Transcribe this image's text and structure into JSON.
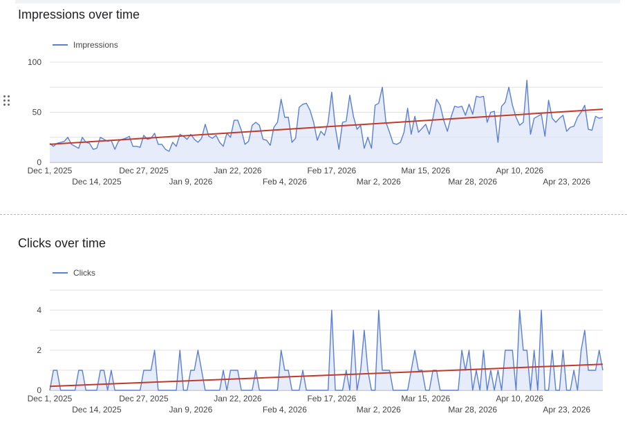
{
  "charts": [
    {
      "title": "Impressions over time",
      "legend": "Impressions"
    },
    {
      "title": "Clicks over time",
      "legend": "Clicks"
    }
  ],
  "colors": {
    "series": "#5a7ed6",
    "area": "#dbe4f8",
    "trend": "#c0392b",
    "grid": "#e0e0e0",
    "axis": "#9e9e9e",
    "title_bar": "#f1f3f4"
  },
  "icons": {
    "drag_handle": "drag-handle-icon"
  },
  "chart_data": [
    {
      "type": "area",
      "title": "Impressions over time",
      "series": [
        {
          "name": "Impressions",
          "y": [
            19,
            16,
            19,
            20,
            21,
            25,
            18,
            16,
            14,
            25,
            20,
            19,
            13,
            14,
            25,
            23,
            21,
            22,
            13,
            21,
            23,
            24,
            26,
            16,
            16,
            15,
            27,
            23,
            24,
            29,
            18,
            18,
            13,
            11,
            20,
            16,
            28,
            26,
            23,
            28,
            23,
            20,
            24,
            38,
            26,
            24,
            27,
            20,
            16,
            29,
            25,
            42,
            42,
            32,
            18,
            21,
            37,
            40,
            37,
            23,
            22,
            17,
            35,
            40,
            63,
            45,
            45,
            20,
            24,
            55,
            58,
            59,
            52,
            40,
            22,
            31,
            27,
            40,
            70,
            35,
            13,
            40,
            41,
            67,
            46,
            33,
            37,
            14,
            25,
            14,
            57,
            59,
            75,
            40,
            30,
            19,
            18,
            20,
            30,
            54,
            28,
            46,
            30,
            34,
            38,
            28,
            44,
            63,
            57,
            42,
            31,
            45,
            56,
            55,
            56,
            47,
            58,
            48,
            66,
            65,
            66,
            40,
            50,
            51,
            20,
            56,
            60,
            75,
            57,
            45,
            37,
            40,
            82,
            28,
            44,
            46,
            48,
            26,
            62,
            44,
            40,
            44,
            47,
            31,
            35,
            36,
            45,
            50,
            57,
            33,
            32,
            46,
            44,
            45
          ]
        }
      ],
      "x_start": "2025-12-01",
      "x_end": "2026-05-03",
      "trend": {
        "start": 18,
        "end": 53
      },
      "ylim": [
        0,
        100
      ],
      "y_ticks": [
        0,
        50,
        100
      ],
      "x_ticks": [
        "Dec 1, 2025",
        "Dec 14, 2025",
        "Dec 27, 2025",
        "Jan 9, 2026",
        "Jan 22, 2026",
        "Feb 4, 2026",
        "Feb 17, 2026",
        "Mar 2, 2026",
        "Mar 15, 2026",
        "Mar 28, 2026",
        "Apr 10, 2026",
        "Apr 23, 2026"
      ],
      "x_tick_days": [
        0,
        13,
        26,
        39,
        52,
        65,
        78,
        91,
        104,
        117,
        130,
        143
      ],
      "legend_position": "top-left",
      "grid": true
    },
    {
      "type": "area",
      "title": "Clicks over time",
      "series": [
        {
          "name": "Clicks",
          "y": [
            0,
            1,
            1,
            0,
            0,
            0,
            0,
            0,
            1,
            1,
            0,
            0,
            0,
            0,
            1,
            1,
            0,
            1,
            0,
            0,
            0,
            0,
            0,
            0,
            0,
            0,
            1,
            1,
            1,
            2,
            0,
            0,
            0,
            0,
            0,
            0,
            2,
            0,
            0,
            1,
            1,
            2,
            1,
            0,
            0,
            0,
            0,
            0,
            1,
            0,
            1,
            1,
            1,
            0,
            0,
            0,
            0,
            1,
            0,
            0,
            0,
            0,
            0,
            0,
            2,
            1,
            1,
            0,
            0,
            0,
            1,
            0,
            0,
            0,
            0,
            0,
            0,
            0,
            4,
            0,
            0,
            0,
            1,
            0,
            3,
            0,
            1,
            3,
            1,
            0,
            0,
            4,
            1,
            1,
            1,
            0,
            0,
            0,
            0,
            0,
            1,
            2,
            1,
            1,
            0,
            0,
            1,
            1,
            0,
            0,
            0,
            0,
            0,
            0,
            2,
            1,
            2,
            0,
            1,
            0,
            2,
            0,
            1,
            0,
            1,
            0,
            2,
            2,
            2,
            0,
            4,
            2,
            2,
            0,
            2,
            0,
            4,
            0,
            0,
            2,
            0,
            0,
            2,
            0,
            0,
            1,
            0,
            2,
            3,
            1,
            1,
            1,
            2,
            1
          ]
        }
      ],
      "x_start": "2025-12-01",
      "x_end": "2026-05-03",
      "trend": {
        "start": 0.2,
        "end": 1.3
      },
      "ylim": [
        0,
        5
      ],
      "y_ticks": [
        0,
        2,
        4
      ],
      "x_ticks": [
        "Dec 1, 2025",
        "Dec 14, 2025",
        "Dec 27, 2025",
        "Jan 9, 2026",
        "Jan 22, 2026",
        "Feb 4, 2026",
        "Feb 17, 2026",
        "Mar 2, 2026",
        "Mar 15, 2026",
        "Mar 28, 2026",
        "Apr 10, 2026",
        "Apr 23, 2026"
      ],
      "x_tick_days": [
        0,
        13,
        26,
        39,
        52,
        65,
        78,
        91,
        104,
        117,
        130,
        143
      ],
      "legend_position": "top-left",
      "grid": true
    }
  ]
}
